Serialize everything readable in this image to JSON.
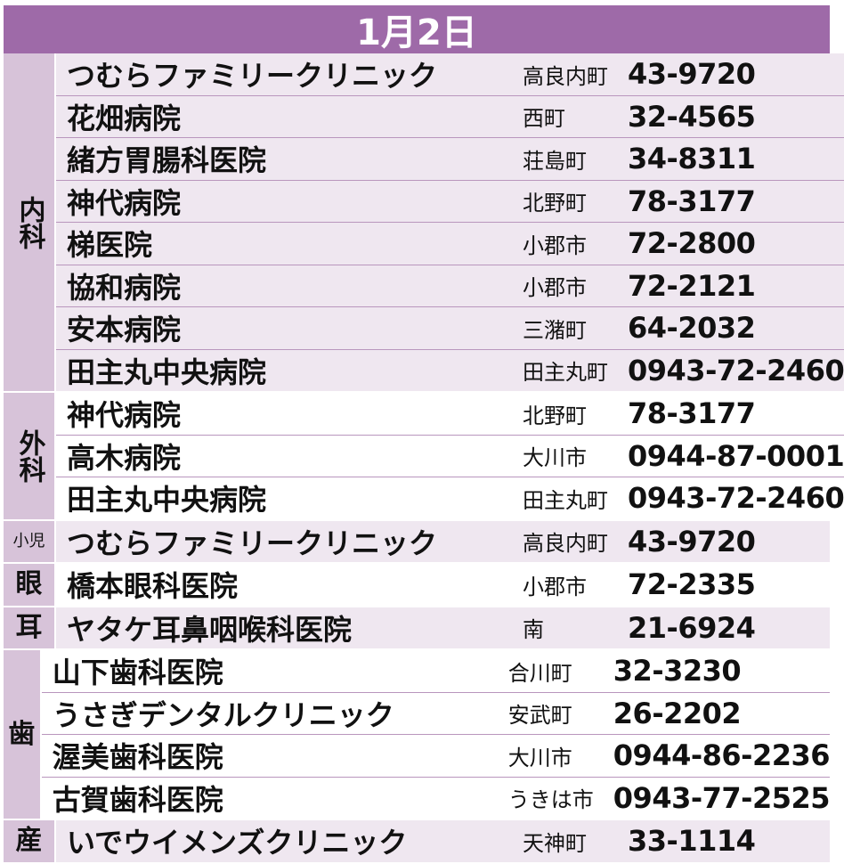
{
  "title": "1月2日",
  "groups": [
    {
      "dept": "内科",
      "rows": [
        {
          "name": "つむらファミリークリニック",
          "town": "高良内町",
          "phone": "43-9720"
        },
        {
          "name": "花畑病院",
          "town": "西町",
          "phone": "32-4565"
        },
        {
          "name": "緒方胃腸科医院",
          "town": "荘島町",
          "phone": "34-8311"
        },
        {
          "name": "神代病院",
          "town": "北野町",
          "phone": "78-3177"
        },
        {
          "name": "梯医院",
          "town": "小郡市",
          "phone": "72-2800"
        },
        {
          "name": "協和病院",
          "town": "小郡市",
          "phone": "72-2121"
        },
        {
          "name": "安本病院",
          "town": "三潴町",
          "phone": "64-2032"
        },
        {
          "name": "田主丸中央病院",
          "town": "田主丸町",
          "phone": "0943-72-2460"
        }
      ]
    },
    {
      "dept": "外科",
      "rows": [
        {
          "name": "神代病院",
          "town": "北野町",
          "phone": "78-3177"
        },
        {
          "name": "高木病院",
          "town": "大川市",
          "phone": "0944-87-0001"
        },
        {
          "name": "田主丸中央病院",
          "town": "田主丸町",
          "phone": "0943-72-2460"
        }
      ]
    },
    {
      "dept": "小児",
      "rows": [
        {
          "name": "つむらファミリークリニック",
          "town": "高良内町",
          "phone": "43-9720"
        }
      ]
    },
    {
      "dept": "眼",
      "rows": [
        {
          "name": "橋本眼科医院",
          "town": "小郡市",
          "phone": "72-2335"
        }
      ]
    },
    {
      "dept": "耳",
      "rows": [
        {
          "name": "ヤタケ耳鼻咽喉科医院",
          "town": "南",
          "phone": "21-6924"
        }
      ]
    },
    {
      "dept": "歯",
      "rows": [
        {
          "name": "山下歯科医院",
          "town": "合川町",
          "phone": "32-3230"
        },
        {
          "name": "うさぎデンタルクリニック",
          "town": "安武町",
          "phone": "26-2202"
        },
        {
          "name": "渥美歯科医院",
          "town": "大川市",
          "phone": "0944-86-2236"
        },
        {
          "name": "古賀歯科医院",
          "town": "うきは市",
          "phone": "0943-77-2525"
        }
      ]
    },
    {
      "dept": "産",
      "rows": [
        {
          "name": "いでウイメンズクリニック",
          "town": "天神町",
          "phone": "33-1114"
        }
      ]
    }
  ]
}
